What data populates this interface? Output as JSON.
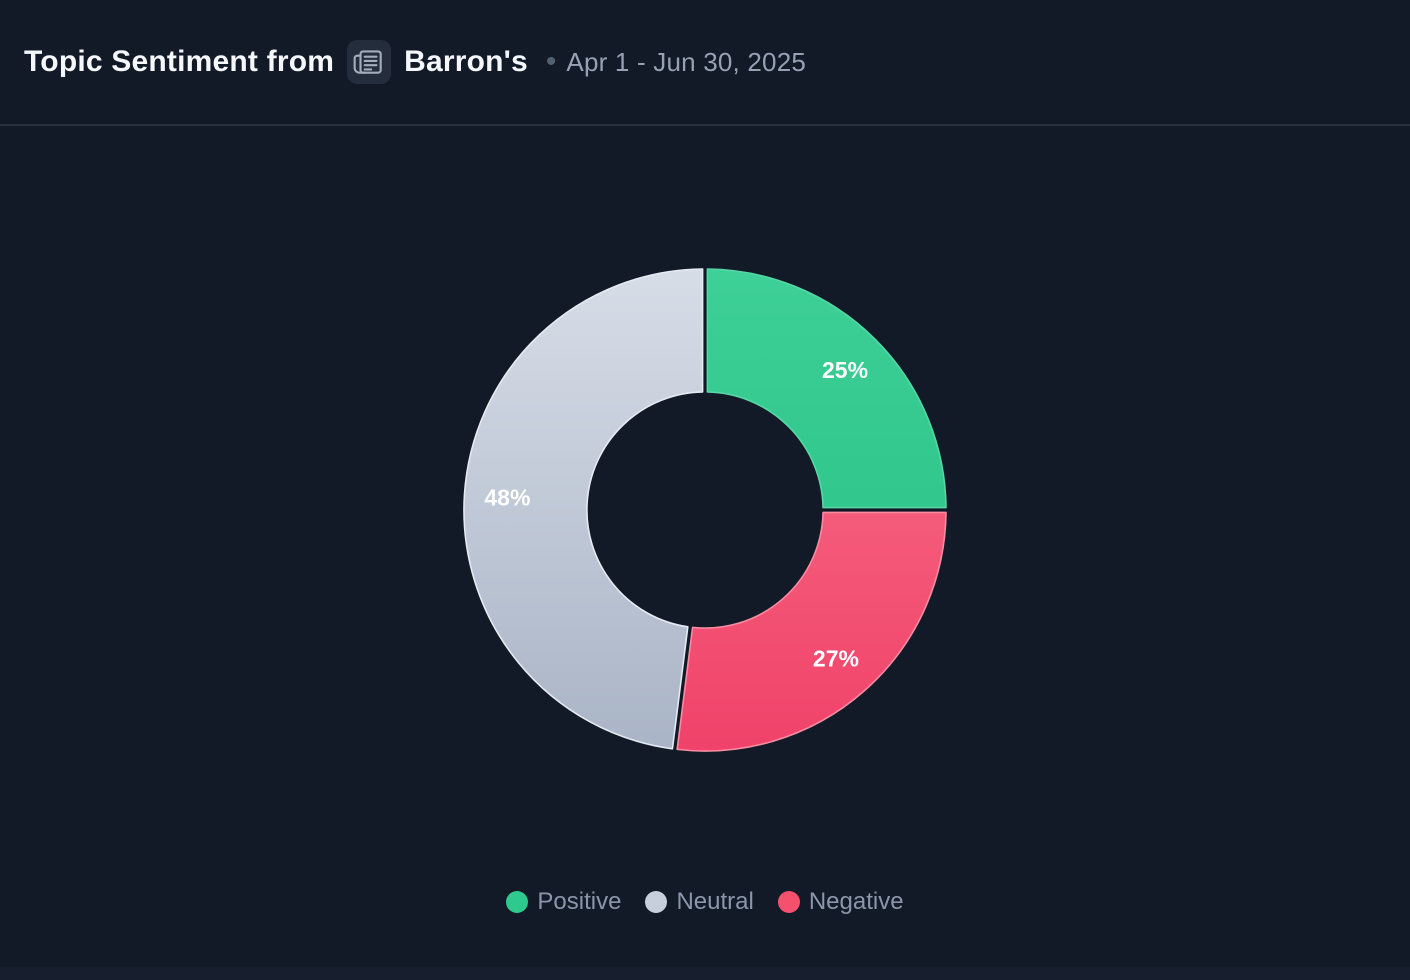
{
  "header": {
    "title_prefix": "Topic Sentiment from",
    "source_name": "Barron's",
    "source_icon": "newspaper-icon",
    "separator_dot": "•",
    "date_range": "Apr 1 - Jun 30, 2025"
  },
  "chart_data": {
    "type": "pie",
    "variant": "donut",
    "title": "Topic Sentiment from Barron's",
    "period": "Apr 1 - Jun 30, 2025",
    "unit": "%",
    "categories": [
      "Positive",
      "Neutral",
      "Negative"
    ],
    "values": [
      25,
      48,
      27
    ],
    "data_labels": [
      "25%",
      "48%",
      "27%"
    ],
    "legend_position": "bottom",
    "start_angle": "top",
    "direction": "clockwise",
    "inner_radius_ratio": 0.49,
    "slices_clockwise_from_top": [
      {
        "name": "Positive",
        "value": 25,
        "label": "25%",
        "color": "#2dc98d",
        "gradient_top": "#3ed096",
        "gradient_bottom": "#23bd83",
        "border_color": "#55d8a4"
      },
      {
        "name": "Negative",
        "value": 27,
        "label": "27%",
        "color": "#f5516e",
        "gradient_top": "#f9758b",
        "gradient_bottom": "#f0426a",
        "border_color": "#fa8ba0"
      },
      {
        "name": "Neutral",
        "value": 48,
        "label": "48%",
        "color": "#c7cfdc",
        "gradient_top": "#d7dde7",
        "gradient_bottom": "#a9b4c6",
        "border_color": "#e6eaf1"
      }
    ],
    "legend": [
      {
        "name": "Positive",
        "color": "#2dc98d"
      },
      {
        "name": "Neutral",
        "color": "#c7cfdc"
      },
      {
        "name": "Negative",
        "color": "#f5516e"
      }
    ]
  },
  "theme": {
    "background": "#121a28",
    "header_divider": "#27303e",
    "footer_strip": "#171f2e",
    "title_color": "#f5f7fa",
    "date_color": "#97a1b3",
    "separator_color": "#526072",
    "legend_text_color": "#8b96aa",
    "label_color": "#ffffff",
    "icon_badge_bg": "#242d3c",
    "icon_glyph_color": "#a3adbd"
  }
}
